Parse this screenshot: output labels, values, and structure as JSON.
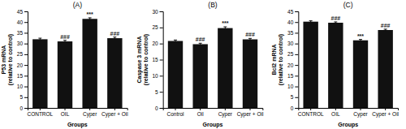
{
  "chart_data": [
    {
      "type": "bar",
      "title": "(A)",
      "ylabel": "P53 mRNA\n(relative to control)",
      "xlabel": "Groups",
      "categories": [
        "CONTROL",
        "OIL",
        "Cyper",
        "Cyper + Oil"
      ],
      "values": [
        32.0,
        31.0,
        41.5,
        32.5
      ],
      "errors": [
        0.5,
        0.5,
        0.5,
        0.5
      ],
      "color": "#111111",
      "ylim": [
        0,
        45
      ],
      "yticks": [
        0,
        5,
        10,
        15,
        20,
        25,
        30,
        35,
        40,
        45
      ],
      "annotations": [
        {
          "x": "OIL",
          "text": "###"
        },
        {
          "x": "Cyper",
          "text": "***"
        },
        {
          "x": "Cyper + Oil",
          "text": "###"
        }
      ]
    },
    {
      "type": "bar",
      "title": "(B)",
      "ylabel": "Caspase 3 mRNA\n(relative to control)",
      "xlabel": "Groups",
      "categories": [
        "Control",
        "Oil",
        "Cyper",
        "Cyper + Oil"
      ],
      "values": [
        20.8,
        19.8,
        24.8,
        21.3
      ],
      "errors": [
        0.3,
        0.3,
        0.4,
        0.3
      ],
      "color": "#111111",
      "ylim": [
        0,
        30
      ],
      "yticks": [
        0,
        5,
        10,
        15,
        20,
        25,
        30
      ],
      "annotations": [
        {
          "x": "Oil",
          "text": "###"
        },
        {
          "x": "Cyper",
          "text": "***"
        },
        {
          "x": "Cyper + Oil",
          "text": "###"
        }
      ]
    },
    {
      "type": "bar",
      "title": "(C)",
      "ylabel": "Bcl2 mRNA\n(relative to control)",
      "xlabel": "Groups",
      "categories": [
        "CONTROL",
        "OIL",
        "Cyper",
        "Cyper + Oil"
      ],
      "values": [
        40.2,
        39.7,
        31.5,
        36.3
      ],
      "errors": [
        0.4,
        0.4,
        0.4,
        0.4
      ],
      "color": "#111111",
      "ylim": [
        0,
        45
      ],
      "yticks": [
        0,
        5,
        10,
        15,
        20,
        25,
        30,
        35,
        40,
        45
      ],
      "annotations": [
        {
          "x": "OIL",
          "text": "###"
        },
        {
          "x": "Cyper",
          "text": "***"
        },
        {
          "x": "Cyper + Oil",
          "text": "###"
        }
      ]
    }
  ]
}
